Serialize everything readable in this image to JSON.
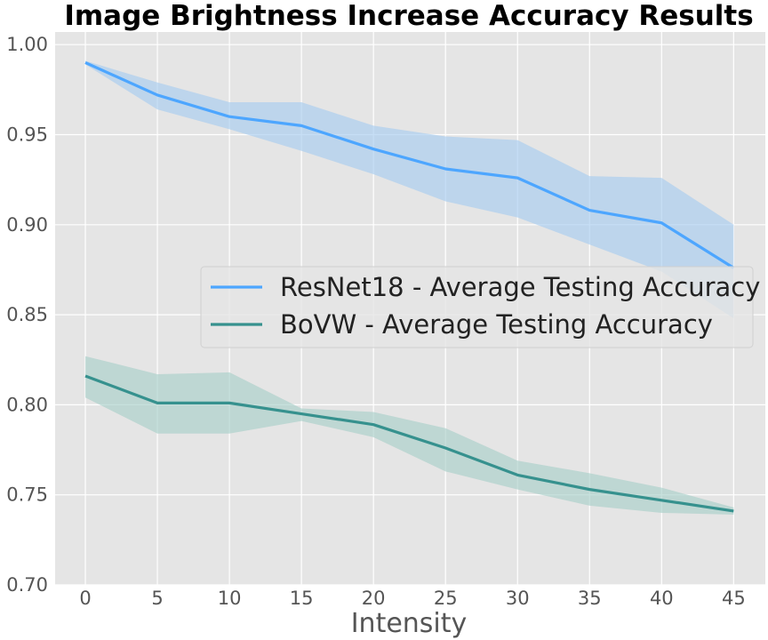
{
  "chart_data": {
    "type": "line",
    "title": "Image Brightness Increase Accuracy Results",
    "xlabel": "Intensity",
    "ylabel": "",
    "x": [
      0,
      5,
      10,
      15,
      20,
      25,
      30,
      35,
      40,
      45
    ],
    "xticks": [
      "0",
      "5",
      "10",
      "15",
      "20",
      "25",
      "30",
      "35",
      "40",
      "45"
    ],
    "yticks": [
      "0.70",
      "0.75",
      "0.80",
      "0.85",
      "0.90",
      "0.95",
      "1.00"
    ],
    "ylim": [
      0.7,
      1.007
    ],
    "xlim": [
      -2.1,
      47.2
    ],
    "grid": true,
    "legend_position": "center-right",
    "background": "#e5e5e5",
    "series": [
      {
        "name": "ResNet18 - Average Testing Accuracy",
        "color": "#4da6ff",
        "band_color": "#a8ccef",
        "values": [
          0.99,
          0.972,
          0.96,
          0.955,
          0.942,
          0.931,
          0.926,
          0.908,
          0.901,
          0.876
        ],
        "lower": [
          0.989,
          0.964,
          0.953,
          0.941,
          0.928,
          0.913,
          0.904,
          0.889,
          0.874,
          0.848
        ],
        "upper": [
          0.991,
          0.979,
          0.968,
          0.968,
          0.955,
          0.949,
          0.947,
          0.927,
          0.926,
          0.9
        ]
      },
      {
        "name": "BoVW - Average Testing Accuracy",
        "color": "#36918e",
        "band_color": "#a9cfc9",
        "values": [
          0.816,
          0.801,
          0.801,
          0.795,
          0.789,
          0.776,
          0.761,
          0.753,
          0.747,
          0.741
        ],
        "lower": [
          0.804,
          0.784,
          0.784,
          0.791,
          0.782,
          0.763,
          0.753,
          0.744,
          0.74,
          0.739
        ],
        "upper": [
          0.827,
          0.817,
          0.818,
          0.798,
          0.796,
          0.787,
          0.769,
          0.762,
          0.754,
          0.743
        ]
      }
    ]
  }
}
